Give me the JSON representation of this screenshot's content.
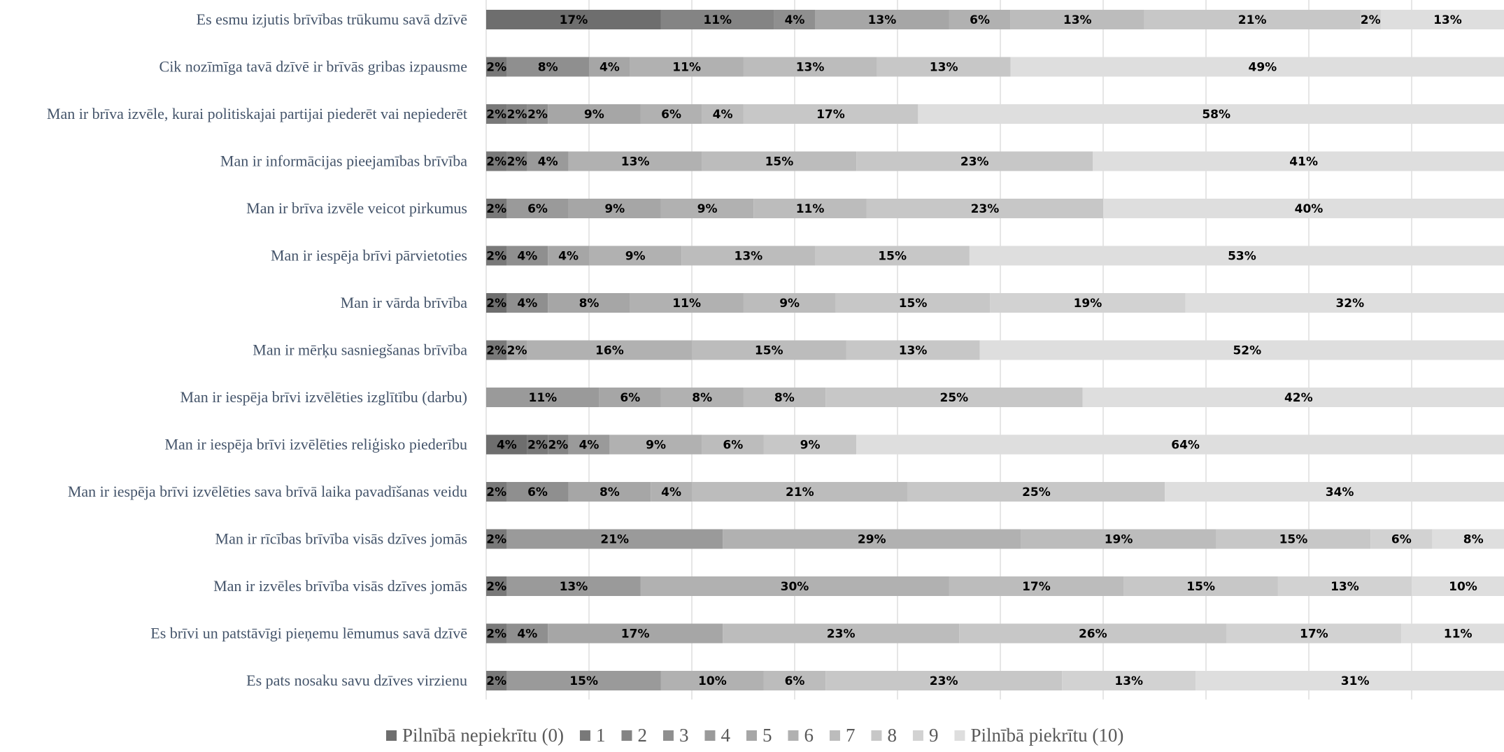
{
  "chart_data": {
    "type": "bar",
    "orientation": "horizontal",
    "stacked": true,
    "xlim": [
      0,
      100
    ],
    "grid": true,
    "legend_position": "bottom",
    "categories": [
      "Es esmu izjutis brīvības trūkumu savā dzīvē",
      "Cik nozīmīga tavā dzīvē ir brīvās gribas izpausme",
      "Man ir brīva izvēle, kurai politiskajai partijai piederēt vai nepiederēt",
      "Man ir informācijas pieejamības brīvība",
      "Man ir brīva izvēle veicot pirkumus",
      "Man ir iespēja brīvi pārvietoties",
      "Man ir vārda brīvība",
      "Man ir mērķu sasniegšanas brīvība",
      "Man ir iespēja brīvi izvēlēties izglītību (darbu)",
      "Man ir iespēja brīvi izvēlēties reliģisko piederību",
      "Man ir iespēja brīvi izvēlēties sava brīvā laika pavadīšanas veidu",
      "Man ir rīcības brīvība visās dzīves jomās",
      "Man ir izvēles brīvība visās dzīves jomās",
      "Es brīvi un patstāvīgi pieņemu lēmumus savā dzīvē",
      "Es pats nosaku savu dzīves virzienu"
    ],
    "series": [
      {
        "name": "Pilnībā nepiekrītu (0)",
        "color": "#6E6E6E",
        "values": [
          17,
          0,
          0,
          0,
          0,
          0,
          2,
          0,
          0,
          4,
          0,
          0,
          0,
          0,
          0
        ]
      },
      {
        "name": "1",
        "color": "#797979",
        "values": [
          0,
          2,
          2,
          2,
          2,
          2,
          0,
          2,
          0,
          2,
          2,
          2,
          2,
          2,
          2
        ]
      },
      {
        "name": "2",
        "color": "#848484",
        "values": [
          11,
          0,
          2,
          2,
          0,
          0,
          0,
          0,
          0,
          2,
          0,
          0,
          0,
          0,
          0
        ]
      },
      {
        "name": "3",
        "color": "#8F8F8F",
        "values": [
          4,
          8,
          2,
          0,
          0,
          4,
          4,
          0,
          0,
          0,
          6,
          0,
          0,
          4,
          0
        ]
      },
      {
        "name": "4",
        "color": "#9A9A9A",
        "values": [
          0,
          0,
          0,
          4,
          6,
          0,
          0,
          0,
          11,
          4,
          0,
          21,
          13,
          0,
          15
        ]
      },
      {
        "name": "5",
        "color": "#A6A6A6",
        "values": [
          13,
          4,
          9,
          0,
          9,
          4,
          8,
          2,
          6,
          0,
          8,
          0,
          0,
          17,
          0
        ]
      },
      {
        "name": "6",
        "color": "#B1B1B1",
        "values": [
          6,
          11,
          6,
          13,
          9,
          9,
          11,
          16,
          8,
          9,
          4,
          29,
          30,
          0,
          10
        ]
      },
      {
        "name": "7",
        "color": "#BCBCBC",
        "values": [
          13,
          13,
          4,
          15,
          11,
          13,
          9,
          15,
          8,
          6,
          21,
          19,
          17,
          23,
          6
        ]
      },
      {
        "name": "8",
        "color": "#C7C7C7",
        "values": [
          21,
          13,
          17,
          23,
          23,
          15,
          15,
          13,
          25,
          9,
          25,
          15,
          15,
          26,
          23
        ]
      },
      {
        "name": "9",
        "color": "#D2D2D2",
        "values": [
          2,
          0,
          0,
          0,
          0,
          0,
          19,
          0,
          0,
          0,
          0,
          6,
          13,
          17,
          13
        ]
      },
      {
        "name": "Pilnībā piekrītu (10)",
        "color": "#DEDEDE",
        "values": [
          13,
          49,
          58,
          41,
          40,
          53,
          32,
          52,
          42,
          64,
          34,
          8,
          10,
          11,
          31
        ]
      }
    ]
  }
}
